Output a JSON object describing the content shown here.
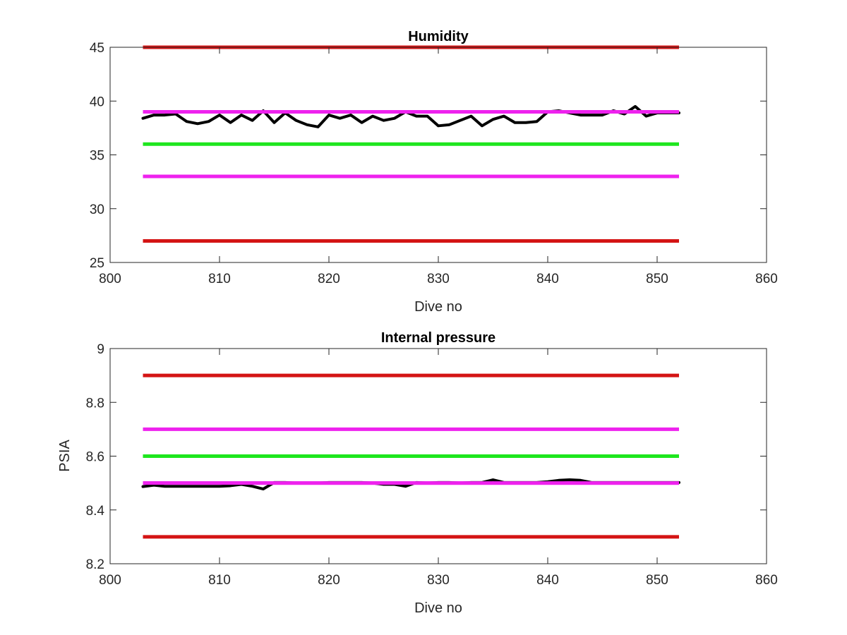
{
  "chart_data": [
    {
      "type": "line",
      "title": "Humidity",
      "xlabel": "Dive no",
      "ylabel": "",
      "xlim": [
        800,
        860
      ],
      "ylim": [
        25,
        45
      ],
      "xticks": [
        800,
        810,
        820,
        830,
        840,
        850,
        860
      ],
      "yticks": [
        25,
        30,
        35,
        40,
        45
      ],
      "grid": false,
      "reference_lines": [
        {
          "y": 45,
          "x": [
            803,
            852
          ],
          "color": "#d41414"
        },
        {
          "y": 39,
          "x": [
            803,
            852
          ],
          "color": "#ee22ee"
        },
        {
          "y": 36,
          "x": [
            803,
            852
          ],
          "color": "#1ee61e"
        },
        {
          "y": 33,
          "x": [
            803,
            852
          ],
          "color": "#ee22ee"
        },
        {
          "y": 27,
          "x": [
            803,
            852
          ],
          "color": "#d41414"
        }
      ],
      "series": [
        {
          "color": "#000000",
          "x": [
            803,
            804,
            805,
            806,
            807,
            808,
            809,
            810,
            811,
            812,
            813,
            814,
            815,
            816,
            817,
            818,
            819,
            820,
            821,
            822,
            823,
            824,
            825,
            826,
            827,
            828,
            829,
            830,
            831,
            832,
            833,
            834,
            835,
            836,
            837,
            838,
            839,
            840,
            841,
            842,
            843,
            844,
            845,
            846,
            847,
            848,
            849,
            850,
            851,
            852
          ],
          "values": [
            38.4,
            38.7,
            38.7,
            38.8,
            38.1,
            37.9,
            38.1,
            38.7,
            38,
            38.7,
            38.2,
            39.1,
            38,
            38.9,
            38.2,
            37.8,
            37.6,
            38.7,
            38.4,
            38.7,
            38,
            38.6,
            38.2,
            38.4,
            39,
            38.6,
            38.6,
            37.7,
            37.8,
            38.2,
            38.6,
            37.7,
            38.3,
            38.6,
            38,
            38,
            38.1,
            39,
            39.1,
            38.9,
            38.7,
            38.7,
            38.7,
            39.1,
            38.8,
            39.5,
            38.6,
            38.9,
            38.9,
            38.9
          ]
        }
      ]
    },
    {
      "type": "line",
      "title": "Internal pressure",
      "xlabel": "Dive no",
      "ylabel": "PSIA",
      "xlim": [
        800,
        860
      ],
      "ylim": [
        8.2,
        9
      ],
      "xticks": [
        800,
        810,
        820,
        830,
        840,
        850,
        860
      ],
      "yticks": [
        8.2,
        8.4,
        8.6,
        8.8,
        9
      ],
      "ytick_labels": [
        "8.2",
        "8.4",
        "8.6",
        "8.8",
        "9"
      ],
      "grid": false,
      "reference_lines": [
        {
          "y": 8.9,
          "x": [
            803,
            852
          ],
          "color": "#d41414"
        },
        {
          "y": 8.7,
          "x": [
            803,
            852
          ],
          "color": "#ee22ee"
        },
        {
          "y": 8.6,
          "x": [
            803,
            852
          ],
          "color": "#1ee61e"
        },
        {
          "y": 8.5,
          "x": [
            803,
            852
          ],
          "color": "#ee22ee"
        },
        {
          "y": 8.3,
          "x": [
            803,
            852
          ],
          "color": "#d41414"
        }
      ],
      "series": [
        {
          "color": "#000000",
          "x": [
            803,
            804,
            805,
            806,
            807,
            808,
            809,
            810,
            811,
            812,
            813,
            814,
            815,
            816,
            817,
            818,
            819,
            820,
            821,
            822,
            823,
            824,
            825,
            826,
            827,
            828,
            829,
            830,
            831,
            832,
            833,
            834,
            835,
            836,
            837,
            838,
            839,
            840,
            841,
            842,
            843,
            844,
            845,
            846,
            847,
            848,
            849,
            850,
            851,
            852
          ],
          "values": [
            8.487,
            8.492,
            8.488,
            8.488,
            8.488,
            8.488,
            8.488,
            8.488,
            8.49,
            8.495,
            8.488,
            8.478,
            8.502,
            8.502,
            8.5,
            8.5,
            8.5,
            8.502,
            8.502,
            8.502,
            8.502,
            8.5,
            8.495,
            8.495,
            8.488,
            8.502,
            8.5,
            8.502,
            8.502,
            8.5,
            8.502,
            8.502,
            8.512,
            8.502,
            8.502,
            8.502,
            8.502,
            8.505,
            8.51,
            8.512,
            8.51,
            8.502,
            8.502,
            8.502,
            8.502,
            8.502,
            8.502,
            8.502,
            8.502,
            8.502
          ]
        }
      ]
    }
  ]
}
